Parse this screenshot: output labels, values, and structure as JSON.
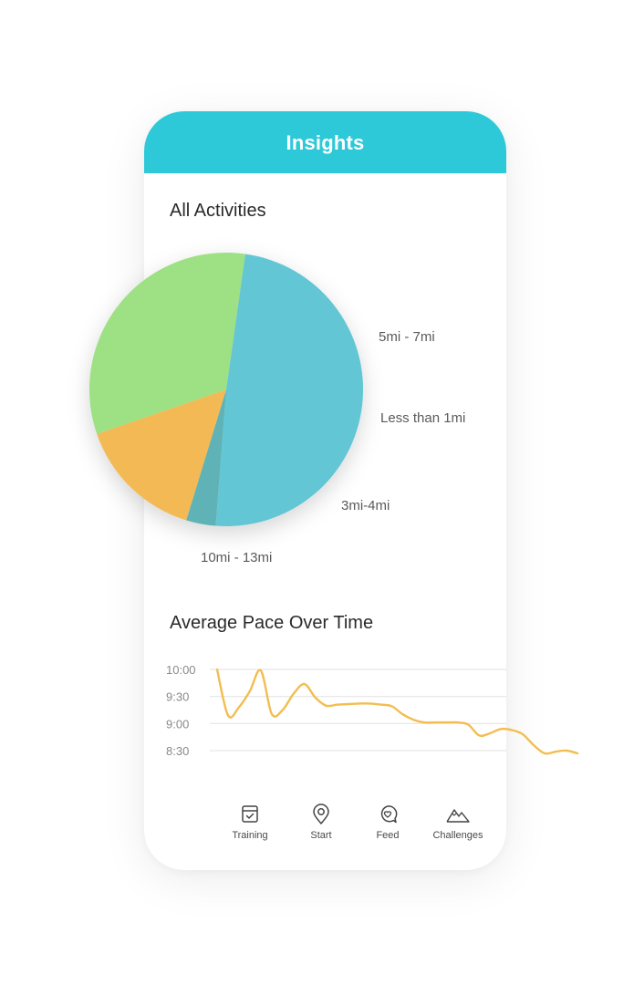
{
  "header": {
    "title": "Insights"
  },
  "sections": {
    "activities_title": "All Activities",
    "pace_title": "Average Pace Over Time"
  },
  "colors": {
    "header": "#2ec9d8",
    "pie_blue": "#62c6d4",
    "pie_teal": "#5eb3b6",
    "pie_orange": "#f3b955",
    "pie_green": "#9de184",
    "pace_line": "#f3bd4f",
    "gridline": "#e6e6e6"
  },
  "chart_data": [
    {
      "type": "pie",
      "title": "All Activities",
      "slices": [
        {
          "label": "5mi - 7mi",
          "value": 49
        },
        {
          "label": "Less than 1mi",
          "value": 3.5
        },
        {
          "label": "3mi-4mi",
          "value": 15
        },
        {
          "label": "10mi - 13mi",
          "value": 32.5
        }
      ]
    },
    {
      "type": "line",
      "title": "Average Pace Over Time",
      "y_ticks": [
        "10:00",
        "9:30",
        "9:00",
        "8:30"
      ],
      "ylim": [
        8.25,
        10.0
      ],
      "series": [
        {
          "values": [
            10.0,
            9.15,
            9.3,
            9.6,
            9.98,
            9.18,
            9.25,
            9.55,
            9.73,
            9.48,
            9.33,
            9.35,
            9.36,
            9.37,
            9.37,
            9.35,
            9.32,
            9.17,
            9.07,
            9.02,
            9.02,
            9.02,
            9.02,
            8.98,
            8.78,
            8.82,
            8.9,
            8.88,
            8.8,
            8.6,
            8.45,
            8.48,
            8.5,
            8.45
          ]
        }
      ],
      "grid": true
    }
  ],
  "tabs": [
    {
      "label": "Training",
      "icon": "calendar-check-icon"
    },
    {
      "label": "Start",
      "icon": "map-pin-icon"
    },
    {
      "label": "Feed",
      "icon": "chat-heart-icon"
    },
    {
      "label": "Challenges",
      "icon": "mountains-icon"
    }
  ]
}
